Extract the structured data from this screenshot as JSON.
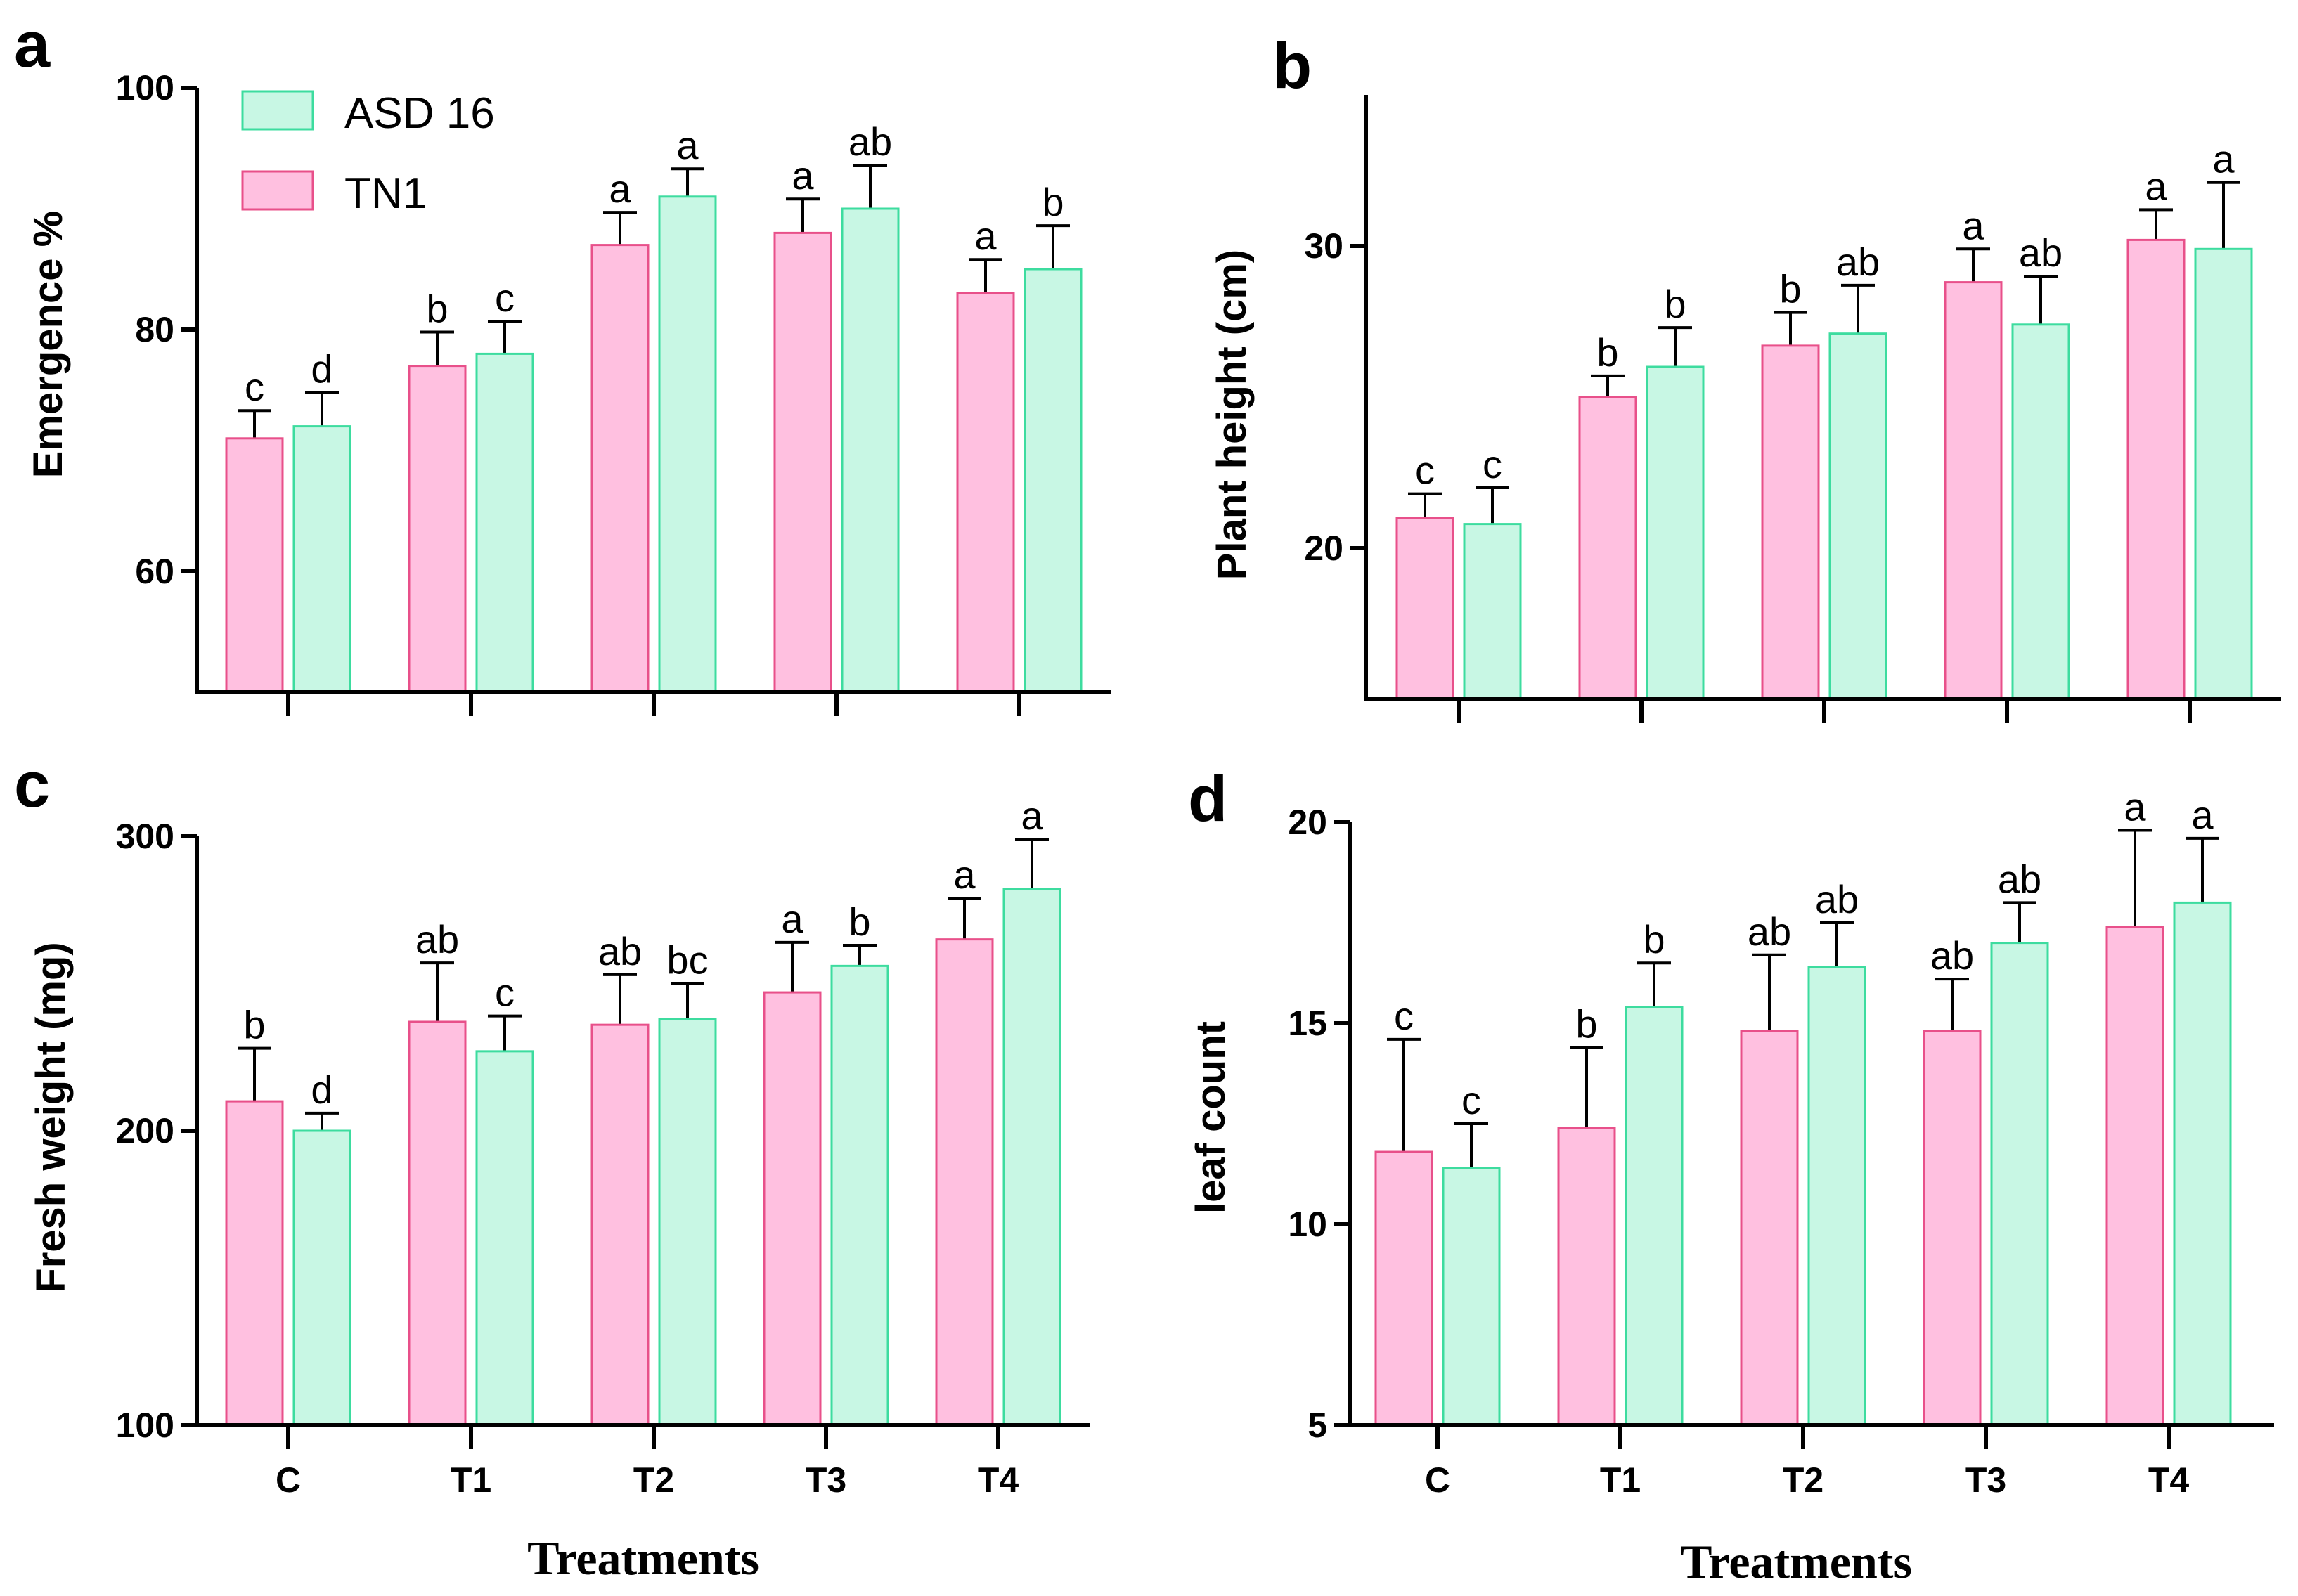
{
  "colors": {
    "tn1_fill": "#ffc0e0",
    "tn1_stroke": "#e8508a",
    "asd_fill": "#c8f7e4",
    "asd_stroke": "#3ddc9f"
  },
  "legend": [
    {
      "label": "ASD 16",
      "series": "asd"
    },
    {
      "label": "TN1",
      "series": "tn1"
    }
  ],
  "x_title": "Treatments",
  "chart_data": [
    {
      "panel": "a",
      "type": "bar",
      "ylabel": "Emergence %",
      "categories": [
        "C",
        "T1",
        "T2",
        "T3",
        "T4"
      ],
      "show_category_labels": false,
      "ylim": [
        50,
        100
      ],
      "yticks": [
        60,
        80,
        100
      ],
      "series": [
        {
          "name": "TN1",
          "values": [
            71,
            77,
            87,
            88,
            83
          ],
          "errors": [
            2.3,
            2.8,
            2.7,
            2.8,
            2.8
          ],
          "letters": [
            "c",
            "b",
            "a",
            "a",
            "a"
          ]
        },
        {
          "name": "ASD 16",
          "values": [
            72,
            78,
            91,
            90,
            85
          ],
          "errors": [
            2.8,
            2.7,
            2.3,
            3.6,
            3.6
          ],
          "letters": [
            "d",
            "c",
            "a",
            "ab",
            "b"
          ]
        }
      ]
    },
    {
      "panel": "b",
      "type": "bar",
      "ylabel": "Plant height (cm)",
      "categories": [
        "C",
        "T1",
        "T2",
        "T3",
        "T4"
      ],
      "show_category_labels": false,
      "ylim": [
        15,
        35
      ],
      "yticks": [
        20,
        30
      ],
      "series": [
        {
          "name": "TN1",
          "values": [
            21.0,
            25.0,
            26.7,
            28.8,
            30.2
          ],
          "errors": [
            0.8,
            0.7,
            1.1,
            1.1,
            1.0
          ],
          "letters": [
            "c",
            "b",
            "b",
            "a",
            "a"
          ]
        },
        {
          "name": "ASD 16",
          "values": [
            20.8,
            26.0,
            27.1,
            27.4,
            29.9
          ],
          "errors": [
            1.2,
            1.3,
            1.6,
            1.6,
            2.2
          ],
          "letters": [
            "c",
            "b",
            "ab",
            "ab",
            "a"
          ]
        }
      ]
    },
    {
      "panel": "c",
      "type": "bar",
      "ylabel": "Fresh weight (mg)",
      "categories": [
        "C",
        "T1",
        "T2",
        "T3",
        "T4"
      ],
      "show_category_labels": true,
      "ylim": [
        100,
        300
      ],
      "yticks": [
        100,
        200,
        300
      ],
      "series": [
        {
          "name": "TN1",
          "values": [
            210,
            237,
            236,
            247,
            265
          ],
          "errors": [
            18,
            20,
            17,
            17,
            14
          ],
          "letters": [
            "b",
            "ab",
            "ab",
            "a",
            "a"
          ]
        },
        {
          "name": "ASD 16",
          "values": [
            200,
            227,
            238,
            256,
            282
          ],
          "errors": [
            6,
            12,
            12,
            7,
            17
          ],
          "letters": [
            "d",
            "c",
            "bc",
            "b",
            "a"
          ]
        }
      ]
    },
    {
      "panel": "d",
      "type": "bar",
      "ylabel": "leaf count",
      "categories": [
        "C",
        "T1",
        "T2",
        "T3",
        "T4"
      ],
      "show_category_labels": true,
      "ylim": [
        5,
        20
      ],
      "yticks": [
        5,
        10,
        15,
        20
      ],
      "series": [
        {
          "name": "TN1",
          "values": [
            11.8,
            12.4,
            14.8,
            14.8,
            17.4
          ],
          "errors": [
            2.8,
            2.0,
            1.9,
            1.3,
            2.4
          ],
          "letters": [
            "c",
            "b",
            "ab",
            "ab",
            "a"
          ]
        },
        {
          "name": "ASD 16",
          "values": [
            11.4,
            15.4,
            16.4,
            17.0,
            18.0
          ],
          "errors": [
            1.1,
            1.1,
            1.1,
            1.0,
            1.6
          ],
          "letters": [
            "c",
            "b",
            "ab",
            "ab",
            "a"
          ]
        }
      ]
    }
  ]
}
